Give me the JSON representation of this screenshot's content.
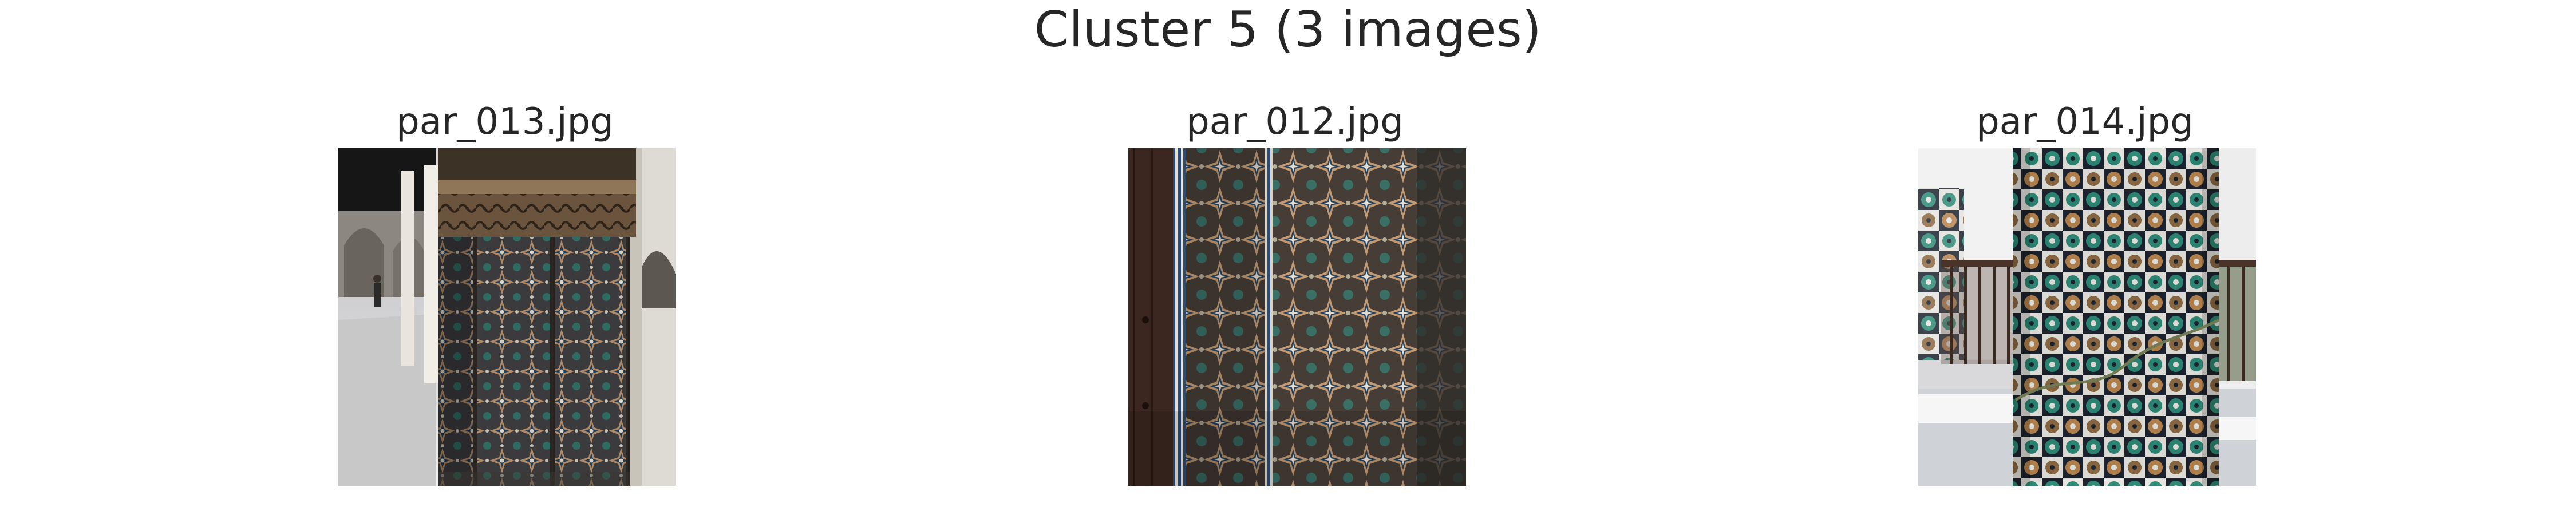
{
  "figure": {
    "title": "Cluster 5 (3 images)"
  },
  "panels": [
    {
      "filename": "par_013.jpg"
    },
    {
      "filename": "par_012.jpg"
    },
    {
      "filename": "par_014.jpg"
    }
  ]
}
